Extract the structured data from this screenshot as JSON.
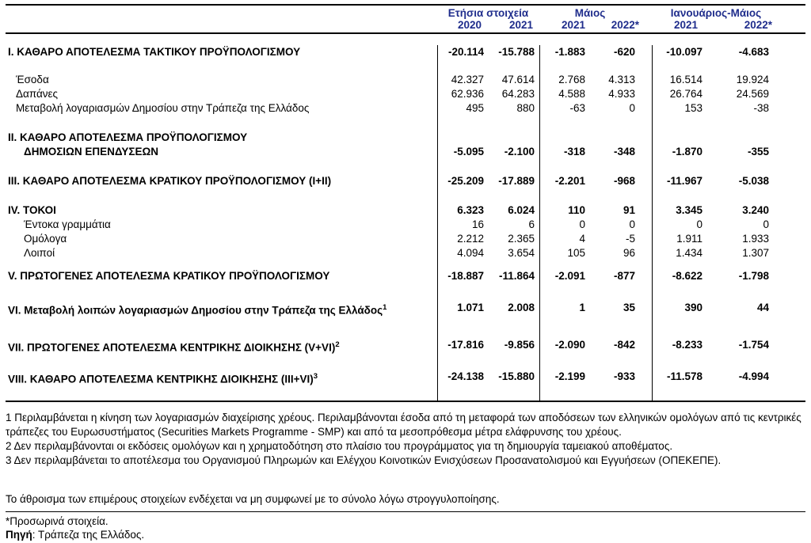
{
  "accent_color": "#1f2d8c",
  "table": {
    "col_groups": [
      {
        "label": "Ετήσια στοιχεία",
        "years": [
          "2020",
          "2021"
        ]
      },
      {
        "label": "Μάιος",
        "years": [
          "2021",
          "2022*"
        ]
      },
      {
        "label": "Ιανουάριος-Μάιος",
        "years": [
          "2021",
          "2022*"
        ]
      }
    ],
    "rows": [
      {
        "label": "I. ΚΑΘΑΡΟ ΑΠΟΤΕΛΕΣΜΑ  ΤΑΚΤΙΚΟΥ ΠΡΟΫΠΟΛΟΓΙΣΜΟΥ",
        "bold": true,
        "mt": 14,
        "values": [
          "-20.114",
          "-15.788",
          "-1.883",
          "-620",
          "-10.097",
          "-4.683"
        ]
      },
      {
        "label": "Έσοδα",
        "indent": 1,
        "mt": 17,
        "values": [
          "42.327",
          "47.614",
          "2.768",
          "4.313",
          "16.514",
          "19.924"
        ]
      },
      {
        "label": "Δαπάνες",
        "indent": 1,
        "values": [
          "62.936",
          "64.283",
          "4.588",
          "4.933",
          "26.764",
          "24.569"
        ]
      },
      {
        "label": "Μεταβολή λογαριασμών Δημοσίου στην Τράπεζα της Ελλάδος",
        "indent": 1,
        "values": [
          "495",
          "880",
          "-63",
          "0",
          "153",
          "-38"
        ]
      },
      {
        "label": "II. ΚΑΘΑΡΟ ΑΠΟΤΕΛΕΣΜΑ ΠΡΟΫΠΟΛΟΓΙΣΜΟΥ",
        "bold": true,
        "mt": 19,
        "values": null
      },
      {
        "label": "ΔΗΜΟΣΙΩΝ ΕΠΕΝΔΥΣΕΩΝ",
        "bold": true,
        "indent": 2,
        "values": [
          "-5.095",
          "-2.100",
          "-318",
          "-348",
          "-1.870",
          "-355"
        ]
      },
      {
        "label": "III. ΚΑΘΑΡΟ ΑΠΟΤΕΛΕΣΜΑ ΚΡΑΤΙΚΟΥ ΠΡΟΫΠΟΛΟΓΙΣΜΟΥ (I+II)",
        "bold": true,
        "mt": 19,
        "values": [
          "-25.209",
          "-17.889",
          "-2.201",
          "-968",
          "-11.967",
          "-5.038"
        ]
      },
      {
        "label": "IV. ΤΟΚΟΙ",
        "bold": true,
        "mt": 19,
        "values": [
          "6.323",
          "6.024",
          "110",
          "91",
          "3.345",
          "3.240"
        ]
      },
      {
        "label": "Έντοκα γραμμάτια",
        "indent": 2,
        "values": [
          "16",
          "6",
          "0",
          "0",
          "0",
          "0"
        ]
      },
      {
        "label": "Ομόλογα",
        "indent": 2,
        "values": [
          "2.212",
          "2.365",
          "4",
          "-5",
          "1.911",
          "1.933"
        ]
      },
      {
        "label": "Λοιποί",
        "indent": 2,
        "values": [
          "4.094",
          "3.654",
          "105",
          "96",
          "1.434",
          "1.307"
        ]
      },
      {
        "label": "V. ΠΡΩΤΟΓΕΝΕΣ ΑΠΟΤΕΛΕΣΜΑ  ΚΡΑΤΙΚΟΥ ΠΡΟΫΠΟΛΟΓΙΣΜΟΥ",
        "bold": true,
        "mt": 11,
        "values": [
          "-18.887",
          "-11.864",
          "-2.091",
          "-877",
          "-8.622",
          "-1.798"
        ]
      },
      {
        "label": "VI. Μεταβολή λοιπών λογαριασμών Δημοσίου στην Τράπεζα της Ελλάδος",
        "sup": "1",
        "bold": true,
        "mt": 22,
        "values": [
          "1.071",
          "2.008",
          "1",
          "35",
          "390",
          "44"
        ]
      },
      {
        "label": "VII. ΠΡΩΤΟΓΕΝΕΣ ΑΠΟΤΕΛΕΣΜΑ ΚΕΝΤΡΙΚΗΣ ΔΙΟΙΚΗΣΗΣ (V+VI)",
        "sup": "2",
        "bold": true,
        "mt": 25,
        "values": [
          "-17.816",
          "-9.856",
          "-2.090",
          "-842",
          "-8.233",
          "-1.754"
        ]
      },
      {
        "label": "VIII. ΚΑΘΑΡΟ ΑΠΟΤΕΛΕΣΜΑ ΚΕΝΤΡΙΚΗΣ ΔΙΟΙΚΗΣΗΣ (III+VI)",
        "sup": "3",
        "bold": true,
        "mt": 19,
        "values": [
          "-24.138",
          "-15.880",
          "-2.199",
          "-933",
          "-11.578",
          "-4.994"
        ]
      }
    ]
  },
  "footnotes": [
    "1 Περιλαμβάνεται η κίνηση των λογαριασμών διαχείρισης χρέους. Περιλαμβάνονται έσοδα από τη μεταφορά των αποδόσεων των ελληνικών ομολόγων από τις κεντρικές τράπεζες του Ευρωσυστήματος (Securities Markets Programme - SMP) και από τα μεσοπρόθεσμα μέτρα ελάφρυνσης του χρέους.",
    "2 Δεν περιλαμβάνονται οι εκδόσεις ομολόγων και η χρηματοδότηση στο πλαίσιο του προγράμματος για τη δημιουργία ταμειακού αποθέματος.",
    "3 Δεν περιλαμβάνεται το αποτέλεσμα του Οργανισμού Πληρωμών και Ελέγχου Κοινοτικών Ενισχύσεων Προσανατολισμού και Εγγυήσεων (ΟΠΕΚΕΠΕ)."
  ],
  "rounding_note": "Το άθροισμα των επιμέρους στοιχείων ενδέχεται να μη συμφωνεί με το σύνολο λόγω στρογγυλοποίησης.",
  "provisional_note": "*Προσωρινά στοιχεία.",
  "source": {
    "label": "Πηγή",
    "rest": ": Τράπεζα της Ελλάδος."
  }
}
